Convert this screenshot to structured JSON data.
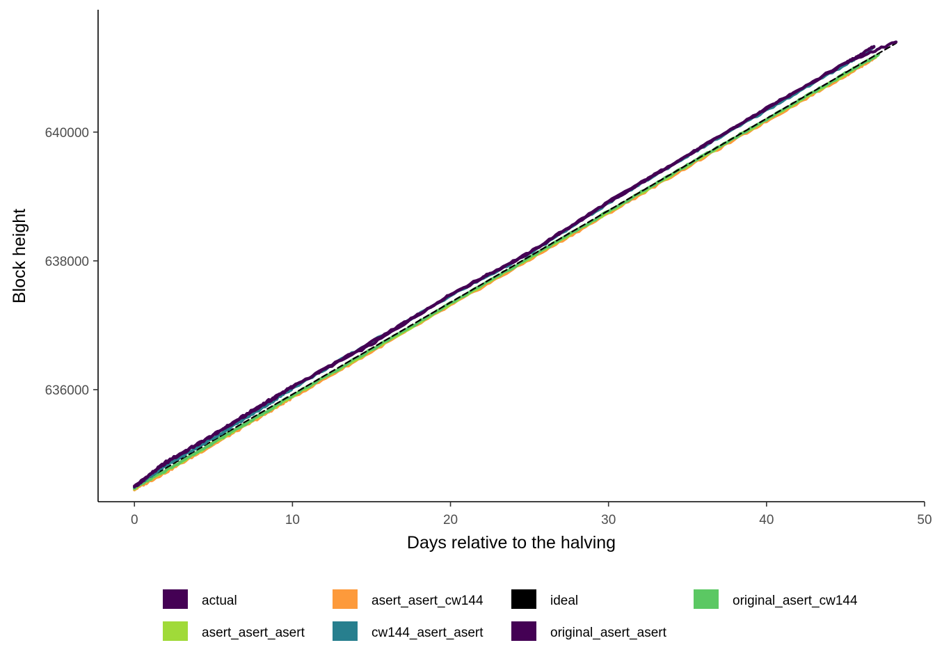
{
  "chart_data": {
    "type": "line",
    "title": "",
    "xlabel": "Days relative to the halving",
    "ylabel": "Block height",
    "xlim": [
      -2.3,
      50
    ],
    "ylim": [
      634260,
      641900
    ],
    "x_ticks": [
      0,
      10,
      20,
      30,
      40,
      50
    ],
    "x_tick_labels": [
      "0",
      "10",
      "20",
      "30",
      "40",
      "50"
    ],
    "y_ticks": [
      636000,
      638000,
      640000
    ],
    "y_tick_labels": [
      "636000",
      "638000",
      "640000"
    ],
    "grid": false,
    "legend_position": "bottom",
    "series": [
      {
        "name": "actual",
        "color": "#440154",
        "linestyle": "solid",
        "x": [
          0,
          2,
          5,
          8,
          10,
          15,
          20,
          25,
          30,
          35,
          40,
          45,
          48.2
        ],
        "y": [
          634500,
          634880,
          635300,
          635760,
          636050,
          636700,
          637480,
          638130,
          638920,
          639640,
          640370,
          641080,
          641400
        ]
      },
      {
        "name": "asert_asert_asert",
        "color": "#A0DA39",
        "linestyle": "solid",
        "x": [
          0,
          2,
          5,
          8,
          10,
          15,
          20,
          25,
          30,
          35,
          40,
          45,
          47
        ],
        "y": [
          634470,
          634740,
          635170,
          635600,
          635900,
          636610,
          637330,
          638040,
          638760,
          639480,
          640190,
          640900,
          641190
        ]
      },
      {
        "name": "asert_asert_cw144",
        "color": "#FD9A3B",
        "linestyle": "solid",
        "x": [
          0,
          2,
          5,
          8,
          10,
          15,
          20,
          25,
          30,
          35,
          40,
          45,
          46.9
        ],
        "y": [
          634450,
          634720,
          635150,
          635580,
          635880,
          636590,
          637310,
          638020,
          638740,
          639460,
          640170,
          640880,
          641160
        ]
      },
      {
        "name": "cw144_asert_asert",
        "color": "#277F8E",
        "linestyle": "solid",
        "x": [
          0,
          2,
          5,
          8,
          10,
          15,
          20,
          25,
          30,
          35,
          40,
          45,
          46.8
        ],
        "y": [
          634490,
          634820,
          635250,
          635700,
          636020,
          636740,
          637460,
          638110,
          638900,
          639630,
          640340,
          641050,
          641320
        ]
      },
      {
        "name": "ideal",
        "color": "#000000",
        "linestyle": "dashed",
        "x": [
          0,
          48.2
        ],
        "y": [
          634500,
          641380
        ]
      },
      {
        "name": "original_asert_asert",
        "color": "#440154",
        "linestyle": "solid",
        "x": [
          0,
          2,
          5,
          8,
          10,
          15,
          20,
          25,
          30,
          35,
          40,
          45,
          46.8
        ],
        "y": [
          634490,
          634860,
          635290,
          635740,
          636040,
          636740,
          637470,
          638120,
          638910,
          639640,
          640360,
          641070,
          641330
        ]
      },
      {
        "name": "original_asert_cw144",
        "color": "#5BC863",
        "linestyle": "solid",
        "x": [
          0,
          2,
          5,
          8,
          10,
          15,
          20,
          25,
          30,
          35,
          40,
          45,
          47.1
        ],
        "y": [
          634480,
          634750,
          635180,
          635610,
          635910,
          636620,
          637340,
          638050,
          638770,
          639490,
          640200,
          640910,
          641210
        ]
      }
    ],
    "legend": {
      "columns": 4,
      "rows": 2,
      "entries": [
        {
          "label": "actual",
          "color": "#440154"
        },
        {
          "label": "asert_asert_asert",
          "color": "#A0DA39"
        },
        {
          "label": "asert_asert_cw144",
          "color": "#FD9A3B"
        },
        {
          "label": "cw144_asert_asert",
          "color": "#277F8E"
        },
        {
          "label": "ideal",
          "color": "#000000"
        },
        {
          "label": "original_asert_asert",
          "color": "#440154"
        },
        {
          "label": "original_asert_cw144",
          "color": "#5BC863"
        }
      ]
    }
  }
}
